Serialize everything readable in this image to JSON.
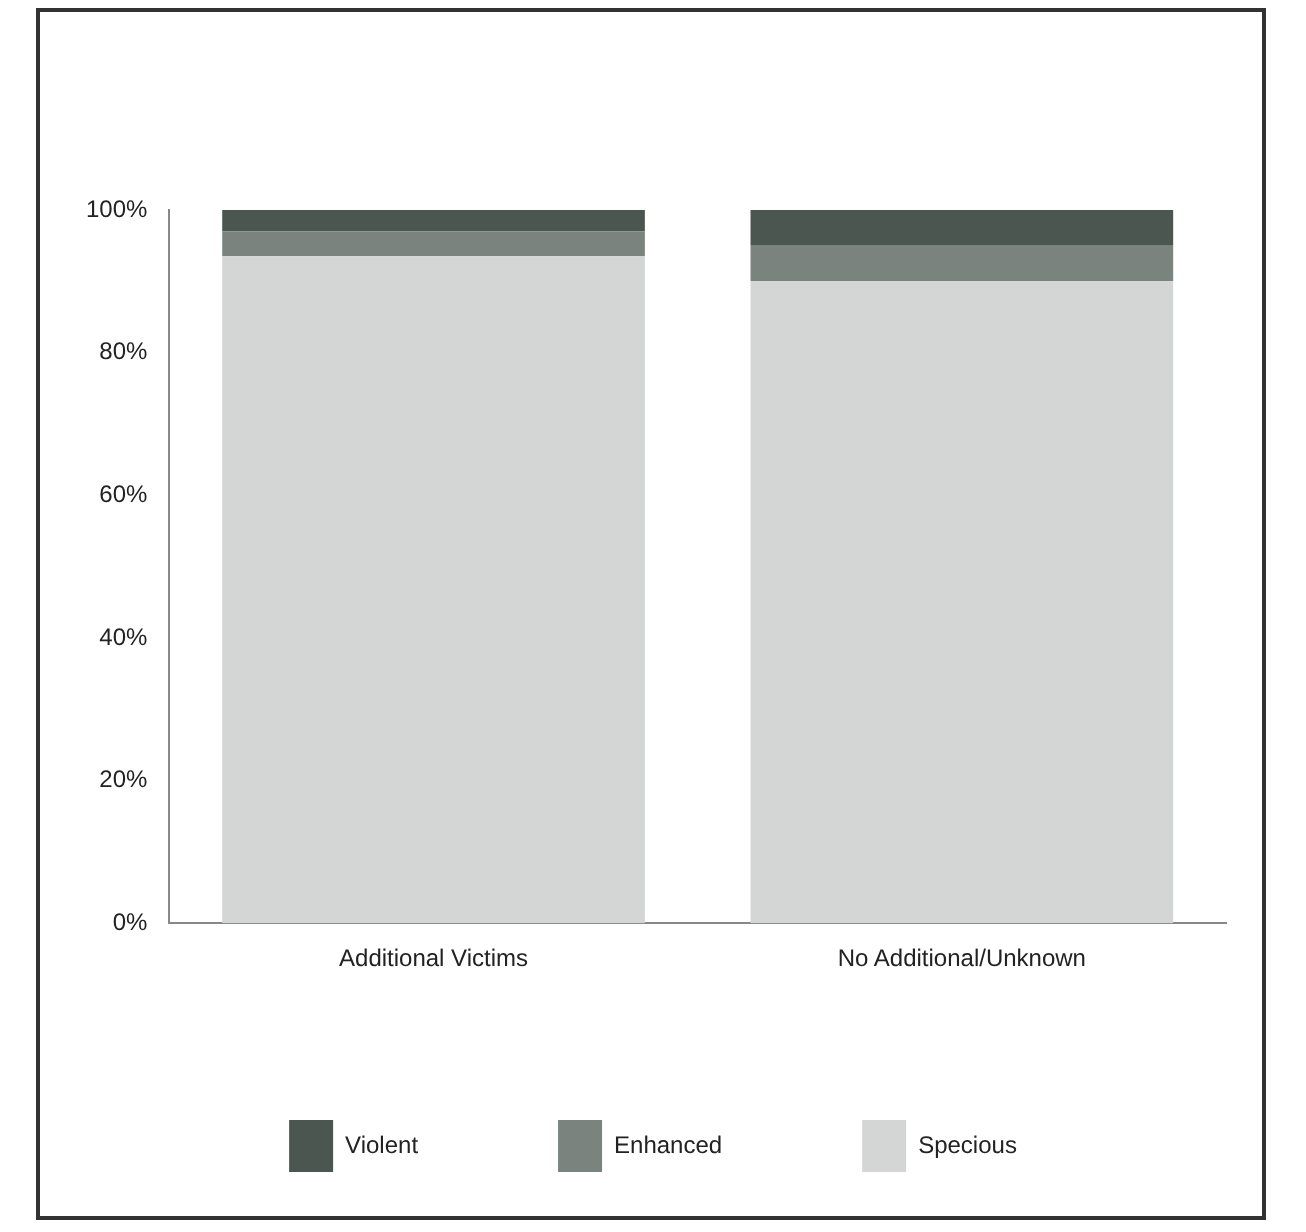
{
  "chart_data": {
    "type": "bar",
    "stacked": true,
    "categories": [
      "Additional Victims",
      "No Additional/Unknown"
    ],
    "series": [
      {
        "name": "Specious",
        "color": "#d3d6d4",
        "values": [
          93.5,
          90
        ]
      },
      {
        "name": "Enhanced",
        "color": "#7a837e",
        "values": [
          3.5,
          5
        ]
      },
      {
        "name": "Violent",
        "color": "#4c5650",
        "values": [
          3,
          5
        ]
      }
    ],
    "ylim": [
      0,
      100
    ],
    "yticks": [
      {
        "value": 0,
        "label": "0%"
      },
      {
        "value": 20,
        "label": "20%"
      },
      {
        "value": 40,
        "label": "40%"
      },
      {
        "value": 60,
        "label": "60%"
      },
      {
        "value": 80,
        "label": "80%"
      },
      {
        "value": 100,
        "label": "100%"
      }
    ],
    "grid": false,
    "legend": "bottom"
  }
}
